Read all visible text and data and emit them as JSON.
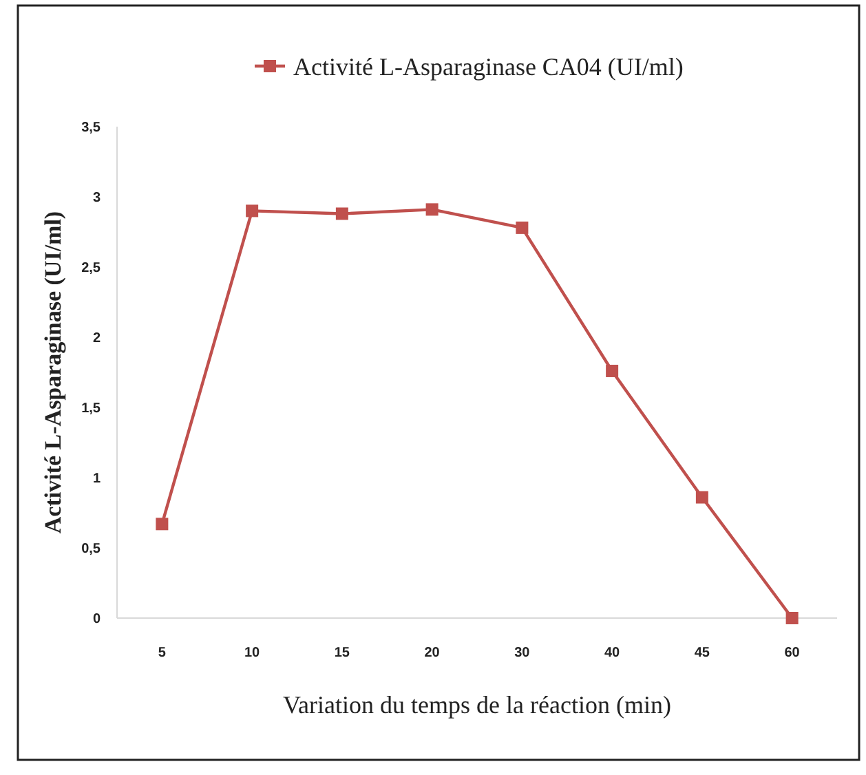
{
  "chart_data": {
    "type": "line",
    "xlabel": "Variation du temps de la réaction (min)",
    "ylabel": "Activité L-Asparaginase (UI/ml)",
    "categories": [
      "5",
      "10",
      "15",
      "20",
      "30",
      "40",
      "45",
      "60"
    ],
    "series": [
      {
        "name": "Activité L-Asparaginase CA04 (UI/ml)",
        "color": "#c0504d",
        "values": [
          0.67,
          2.9,
          2.88,
          2.91,
          2.78,
          1.76,
          0.86,
          0
        ]
      }
    ],
    "ylim": [
      0,
      3.5
    ],
    "yticks": [
      {
        "value": 0,
        "label": "0"
      },
      {
        "value": 0.5,
        "label": "0,5"
      },
      {
        "value": 1,
        "label": "1"
      },
      {
        "value": 1.5,
        "label": "1,5"
      },
      {
        "value": 2,
        "label": "2"
      },
      {
        "value": 2.5,
        "label": "2,5"
      },
      {
        "value": 3,
        "label": "3"
      },
      {
        "value": 3.5,
        "label": "3,5"
      }
    ],
    "legend": "top",
    "marker": "square",
    "line_style": "solid",
    "grid": false
  }
}
